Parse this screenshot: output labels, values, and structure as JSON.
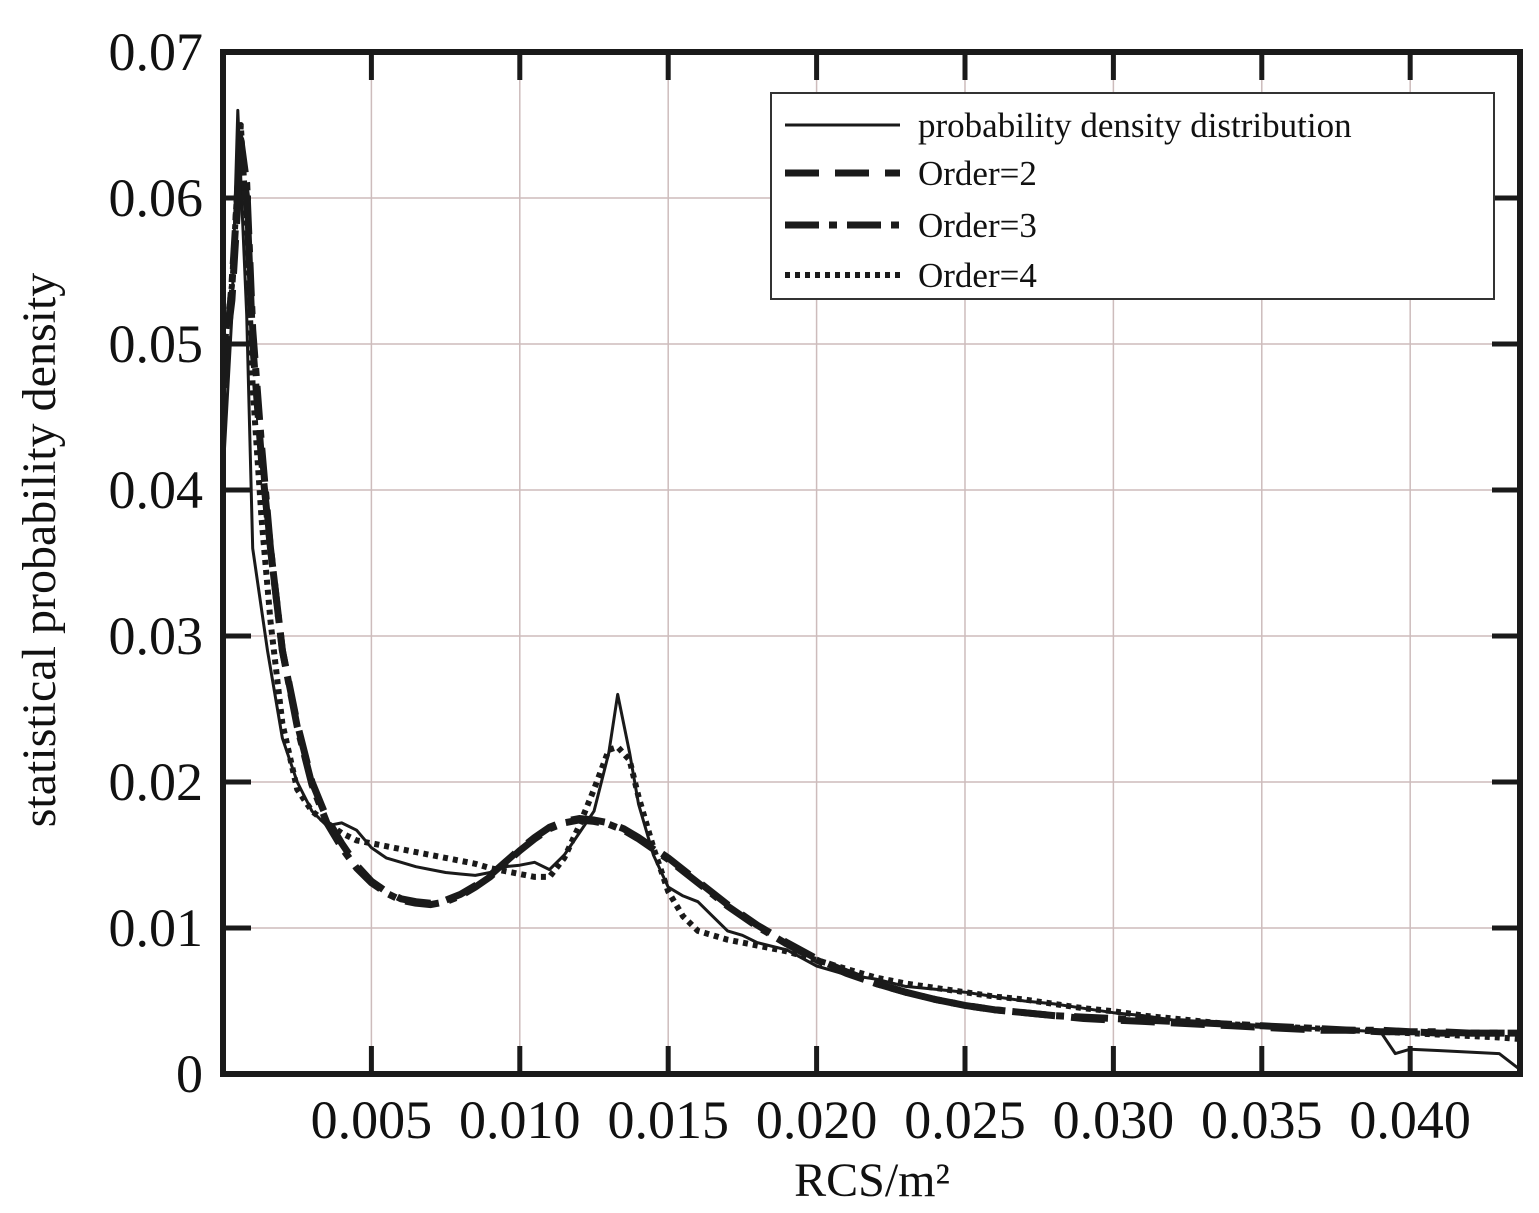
{
  "chart_data": {
    "type": "line",
    "title": "",
    "xlabel": "RCS/m²",
    "ylabel": "statistical probability density",
    "xlim": [
      0,
      0.0437
    ],
    "ylim": [
      0,
      0.07
    ],
    "xticks": [
      0.005,
      0.01,
      0.015,
      0.02,
      0.025,
      0.03,
      0.035,
      0.04
    ],
    "xtick_labels": [
      "0.005",
      "0.010",
      "0.015",
      "0.020",
      "0.025",
      "0.030",
      "0.035",
      "0.040"
    ],
    "yticks": [
      0,
      0.01,
      0.02,
      0.03,
      0.04,
      0.05,
      0.06,
      0.07
    ],
    "ytick_labels": [
      "0",
      "0.01",
      "0.02",
      "0.03",
      "0.04",
      "0.05",
      "0.06",
      "0.07"
    ],
    "grid": true,
    "legend_position": "top-right",
    "series": [
      {
        "name": "probability density distribution",
        "style": "solid",
        "color": "#1a1a1a",
        "x": [
          0.0,
          0.0003,
          0.0005,
          0.0008,
          0.001,
          0.0015,
          0.002,
          0.0025,
          0.003,
          0.0035,
          0.004,
          0.0045,
          0.005,
          0.0055,
          0.006,
          0.0065,
          0.007,
          0.0075,
          0.008,
          0.0085,
          0.009,
          0.0095,
          0.01,
          0.0105,
          0.011,
          0.0115,
          0.012,
          0.0125,
          0.013,
          0.0133,
          0.0137,
          0.014,
          0.0145,
          0.015,
          0.0155,
          0.016,
          0.0165,
          0.017,
          0.0175,
          0.018,
          0.019,
          0.02,
          0.021,
          0.022,
          0.023,
          0.024,
          0.025,
          0.026,
          0.027,
          0.028,
          0.029,
          0.03,
          0.031,
          0.032,
          0.033,
          0.034,
          0.035,
          0.036,
          0.037,
          0.038,
          0.039,
          0.0395,
          0.04,
          0.041,
          0.042,
          0.043,
          0.0437
        ],
        "y": [
          0.041,
          0.052,
          0.066,
          0.052,
          0.036,
          0.029,
          0.023,
          0.02,
          0.018,
          0.017,
          0.0172,
          0.0167,
          0.0155,
          0.0148,
          0.0145,
          0.0142,
          0.014,
          0.0138,
          0.0137,
          0.0136,
          0.0138,
          0.0142,
          0.0143,
          0.0145,
          0.014,
          0.015,
          0.0165,
          0.018,
          0.022,
          0.026,
          0.022,
          0.0185,
          0.015,
          0.0128,
          0.0122,
          0.0118,
          0.0108,
          0.0098,
          0.0095,
          0.009,
          0.0085,
          0.0074,
          0.0068,
          0.0065,
          0.006,
          0.0058,
          0.0056,
          0.0053,
          0.005,
          0.0048,
          0.0045,
          0.0042,
          0.004,
          0.0037,
          0.0036,
          0.0034,
          0.0033,
          0.0032,
          0.0031,
          0.003,
          0.0029,
          0.0014,
          0.0017,
          0.0016,
          0.0015,
          0.0014,
          0.0003
        ]
      },
      {
        "name": "Order=2",
        "style": "dashed",
        "color": "#1a1a1a",
        "x": [
          0.0,
          0.0003,
          0.0006,
          0.0008,
          0.001,
          0.0013,
          0.0016,
          0.002,
          0.0025,
          0.003,
          0.0035,
          0.004,
          0.0045,
          0.005,
          0.0055,
          0.006,
          0.0065,
          0.007,
          0.0075,
          0.008,
          0.0085,
          0.009,
          0.0095,
          0.01,
          0.0105,
          0.011,
          0.0115,
          0.012,
          0.0125,
          0.013,
          0.0135,
          0.014,
          0.015,
          0.016,
          0.017,
          0.018,
          0.019,
          0.02,
          0.021,
          0.022,
          0.023,
          0.024,
          0.025,
          0.026,
          0.027,
          0.028,
          0.029,
          0.03,
          0.031,
          0.032,
          0.033,
          0.034,
          0.035,
          0.036,
          0.037,
          0.038,
          0.039,
          0.04,
          0.041,
          0.042,
          0.043,
          0.0437
        ],
        "y": [
          0.048,
          0.053,
          0.063,
          0.06,
          0.05,
          0.042,
          0.036,
          0.029,
          0.024,
          0.02,
          0.0175,
          0.0158,
          0.0143,
          0.0132,
          0.0125,
          0.012,
          0.0118,
          0.0117,
          0.0119,
          0.0123,
          0.0129,
          0.0136,
          0.0145,
          0.0154,
          0.0162,
          0.0169,
          0.0173,
          0.0175,
          0.0174,
          0.0172,
          0.0168,
          0.0162,
          0.0148,
          0.0132,
          0.0116,
          0.0102,
          0.009,
          0.0079,
          0.007,
          0.0062,
          0.0056,
          0.0051,
          0.0047,
          0.0044,
          0.0042,
          0.004,
          0.0038,
          0.0037,
          0.0036,
          0.0035,
          0.0034,
          0.0033,
          0.0032,
          0.0031,
          0.003,
          0.003,
          0.0029,
          0.0029,
          0.0028,
          0.0028,
          0.0028,
          0.0028
        ]
      },
      {
        "name": "Order=3",
        "style": "dash-dot",
        "color": "#1a1a1a",
        "x": [
          0.0,
          0.0003,
          0.0006,
          0.0008,
          0.001,
          0.0013,
          0.0016,
          0.002,
          0.0025,
          0.003,
          0.0035,
          0.004,
          0.0045,
          0.005,
          0.0055,
          0.006,
          0.0065,
          0.007,
          0.0075,
          0.008,
          0.0085,
          0.009,
          0.0095,
          0.01,
          0.0105,
          0.011,
          0.0115,
          0.012,
          0.0125,
          0.013,
          0.0135,
          0.014,
          0.015,
          0.016,
          0.017,
          0.018,
          0.019,
          0.02,
          0.021,
          0.022,
          0.023,
          0.024,
          0.025,
          0.026,
          0.027,
          0.028,
          0.029,
          0.03,
          0.031,
          0.032,
          0.033,
          0.034,
          0.035,
          0.036,
          0.037,
          0.038,
          0.039,
          0.04,
          0.041,
          0.042,
          0.043,
          0.0437
        ],
        "y": [
          0.047,
          0.054,
          0.064,
          0.061,
          0.051,
          0.043,
          0.036,
          0.029,
          0.0238,
          0.0198,
          0.0172,
          0.0155,
          0.0141,
          0.0131,
          0.0124,
          0.0119,
          0.0117,
          0.0116,
          0.0118,
          0.0122,
          0.0128,
          0.0135,
          0.0144,
          0.0153,
          0.0161,
          0.0168,
          0.0172,
          0.0174,
          0.0173,
          0.0171,
          0.0167,
          0.0161,
          0.0147,
          0.0131,
          0.0115,
          0.0101,
          0.0089,
          0.0078,
          0.0069,
          0.0062,
          0.0056,
          0.0051,
          0.0047,
          0.0044,
          0.0042,
          0.004,
          0.0039,
          0.0038,
          0.0037,
          0.0036,
          0.0035,
          0.0034,
          0.0033,
          0.0032,
          0.0031,
          0.003,
          0.003,
          0.0029,
          0.0029,
          0.0028,
          0.0028,
          0.0028
        ]
      },
      {
        "name": "Order=4",
        "style": "dotted",
        "color": "#1a1a1a",
        "x": [
          0.0,
          0.0003,
          0.0006,
          0.0008,
          0.001,
          0.0013,
          0.0016,
          0.002,
          0.0025,
          0.003,
          0.0035,
          0.004,
          0.0045,
          0.005,
          0.0055,
          0.006,
          0.0065,
          0.007,
          0.0075,
          0.008,
          0.0085,
          0.009,
          0.0095,
          0.01,
          0.0105,
          0.011,
          0.0115,
          0.012,
          0.0125,
          0.013,
          0.0133,
          0.0137,
          0.014,
          0.0145,
          0.015,
          0.0155,
          0.016,
          0.017,
          0.018,
          0.019,
          0.02,
          0.021,
          0.022,
          0.023,
          0.024,
          0.025,
          0.026,
          0.027,
          0.028,
          0.029,
          0.03,
          0.031,
          0.032,
          0.033,
          0.034,
          0.035,
          0.036,
          0.037,
          0.038,
          0.039,
          0.04,
          0.041,
          0.042,
          0.043,
          0.0437
        ],
        "y": [
          0.049,
          0.054,
          0.065,
          0.058,
          0.047,
          0.038,
          0.031,
          0.024,
          0.0195,
          0.018,
          0.0172,
          0.0165,
          0.016,
          0.0158,
          0.0156,
          0.0154,
          0.0152,
          0.015,
          0.0148,
          0.0146,
          0.0144,
          0.0141,
          0.0139,
          0.0137,
          0.0135,
          0.0135,
          0.0148,
          0.017,
          0.0195,
          0.0222,
          0.0224,
          0.0215,
          0.019,
          0.0155,
          0.0125,
          0.0108,
          0.0098,
          0.0092,
          0.0088,
          0.0084,
          0.0078,
          0.0072,
          0.0066,
          0.0062,
          0.0059,
          0.0056,
          0.0053,
          0.0051,
          0.0048,
          0.0045,
          0.0043,
          0.004,
          0.0038,
          0.0036,
          0.0034,
          0.0033,
          0.0032,
          0.0031,
          0.003,
          0.0029,
          0.0028,
          0.0027,
          0.0026,
          0.0025,
          0.0024
        ]
      }
    ]
  }
}
